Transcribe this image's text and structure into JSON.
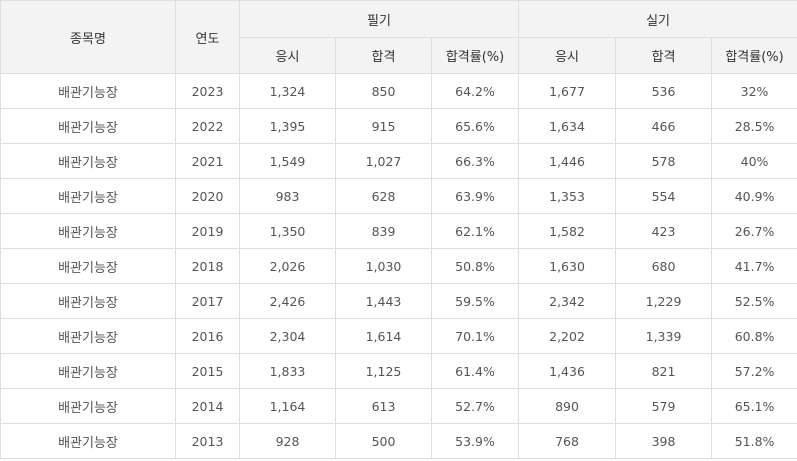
{
  "headers": {
    "item": "종목명",
    "year": "연도",
    "written": "필기",
    "practical": "실기",
    "applicants": "응시",
    "passed": "합격",
    "pass_rate": "합격률(%)"
  },
  "rows": [
    {
      "item": "배관기능장",
      "year": "2023",
      "w_app": "1,324",
      "w_pass": "850",
      "w_rate": "64.2%",
      "p_app": "1,677",
      "p_pass": "536",
      "p_rate": "32%"
    },
    {
      "item": "배관기능장",
      "year": "2022",
      "w_app": "1,395",
      "w_pass": "915",
      "w_rate": "65.6%",
      "p_app": "1,634",
      "p_pass": "466",
      "p_rate": "28.5%"
    },
    {
      "item": "배관기능장",
      "year": "2021",
      "w_app": "1,549",
      "w_pass": "1,027",
      "w_rate": "66.3%",
      "p_app": "1,446",
      "p_pass": "578",
      "p_rate": "40%"
    },
    {
      "item": "배관기능장",
      "year": "2020",
      "w_app": "983",
      "w_pass": "628",
      "w_rate": "63.9%",
      "p_app": "1,353",
      "p_pass": "554",
      "p_rate": "40.9%"
    },
    {
      "item": "배관기능장",
      "year": "2019",
      "w_app": "1,350",
      "w_pass": "839",
      "w_rate": "62.1%",
      "p_app": "1,582",
      "p_pass": "423",
      "p_rate": "26.7%"
    },
    {
      "item": "배관기능장",
      "year": "2018",
      "w_app": "2,026",
      "w_pass": "1,030",
      "w_rate": "50.8%",
      "p_app": "1,630",
      "p_pass": "680",
      "p_rate": "41.7%"
    },
    {
      "item": "배관기능장",
      "year": "2017",
      "w_app": "2,426",
      "w_pass": "1,443",
      "w_rate": "59.5%",
      "p_app": "2,342",
      "p_pass": "1,229",
      "p_rate": "52.5%"
    },
    {
      "item": "배관기능장",
      "year": "2016",
      "w_app": "2,304",
      "w_pass": "1,614",
      "w_rate": "70.1%",
      "p_app": "2,202",
      "p_pass": "1,339",
      "p_rate": "60.8%"
    },
    {
      "item": "배관기능장",
      "year": "2015",
      "w_app": "1,833",
      "w_pass": "1,125",
      "w_rate": "61.4%",
      "p_app": "1,436",
      "p_pass": "821",
      "p_rate": "57.2%"
    },
    {
      "item": "배관기능장",
      "year": "2014",
      "w_app": "1,164",
      "w_pass": "613",
      "w_rate": "52.7%",
      "p_app": "890",
      "p_pass": "579",
      "p_rate": "65.1%"
    },
    {
      "item": "배관기능장",
      "year": "2013",
      "w_app": "928",
      "w_pass": "500",
      "w_rate": "53.9%",
      "p_app": "768",
      "p_pass": "398",
      "p_rate": "51.8%"
    }
  ]
}
